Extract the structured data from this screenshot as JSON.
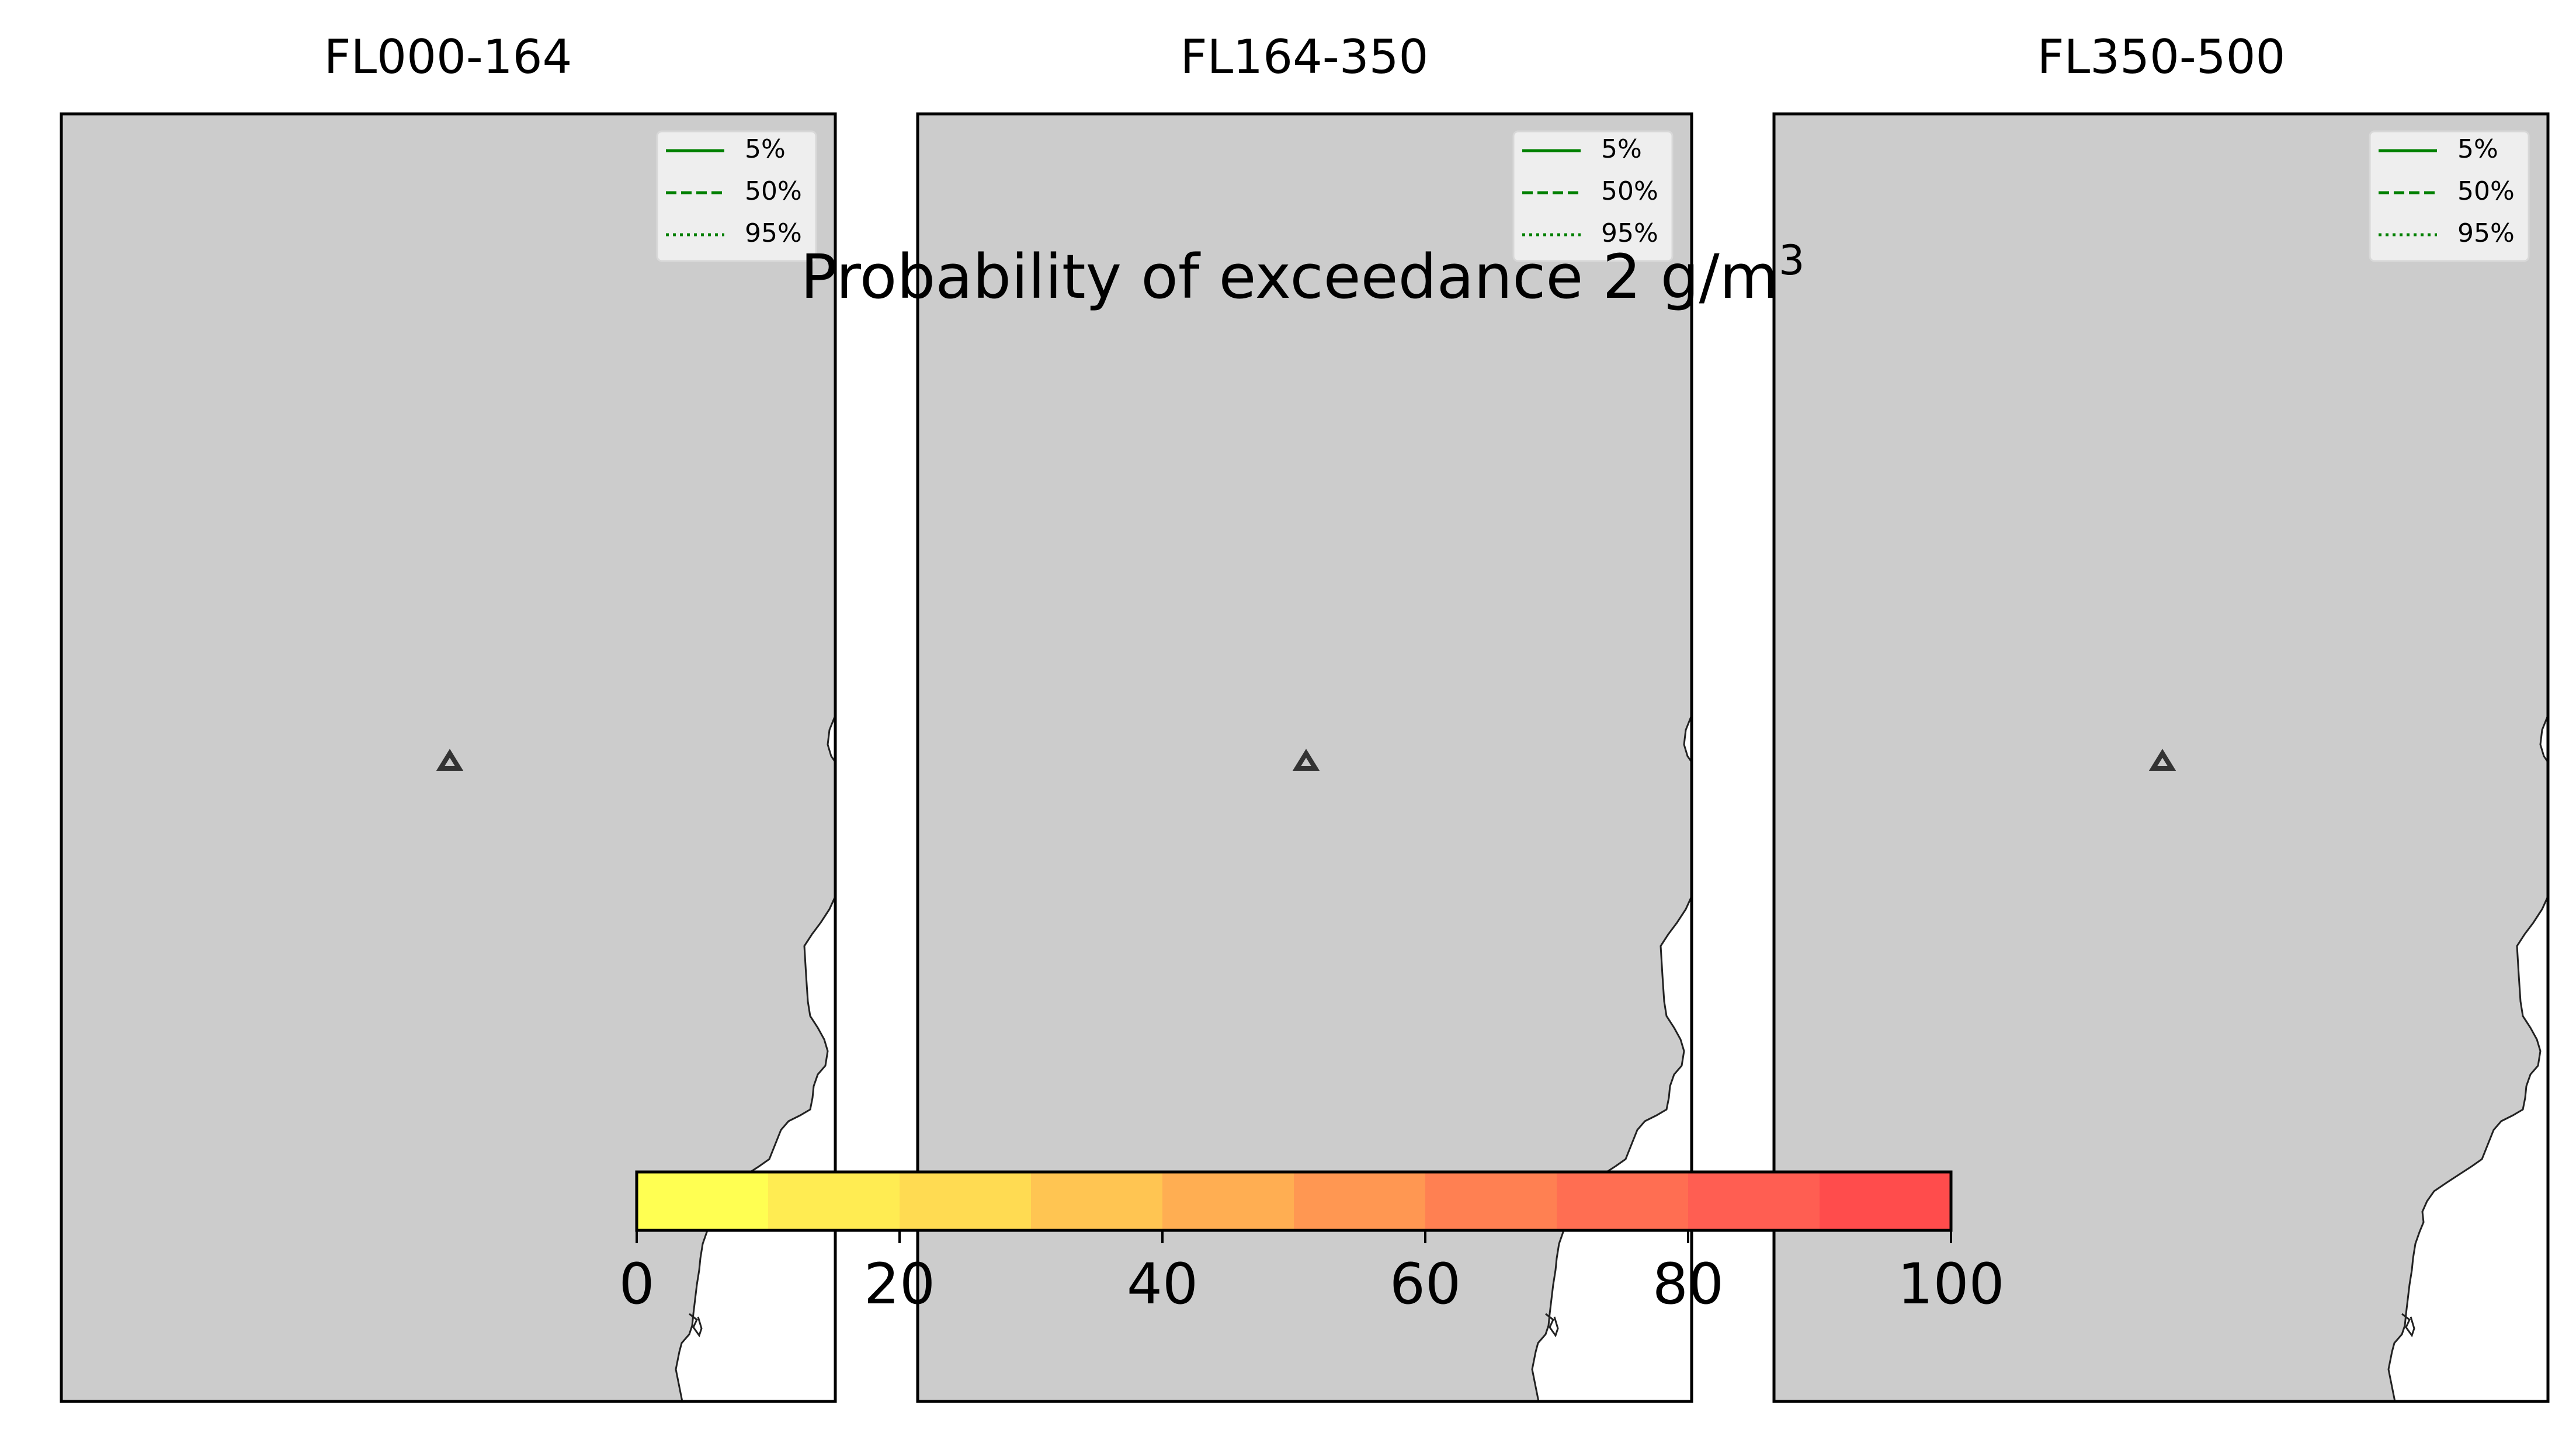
{
  "suptitle": {
    "text": "Probability of exceedance 2 g/m",
    "superscript": "3"
  },
  "panels": [
    {
      "title": "FL000-164",
      "legend": [
        "5%",
        "50%",
        "95%"
      ]
    },
    {
      "title": "FL164-350",
      "legend": [
        "5%",
        "50%",
        "95%"
      ]
    },
    {
      "title": "FL350-500",
      "legend": [
        "5%",
        "50%",
        "95%"
      ]
    }
  ],
  "colors": {
    "land": "#cccccc",
    "sea": "#ffffff",
    "coast": "#222222",
    "contour": "#008000",
    "volcano_marker": "#333333"
  },
  "colorbar": {
    "ticks": [
      "0",
      "20",
      "40",
      "60",
      "80",
      "100"
    ],
    "min": 0,
    "max": 100,
    "colors": [
      "#ffff52",
      "#ffec52",
      "#ffdb52",
      "#ffc552",
      "#ffae52",
      "#ff9752",
      "#ff8052",
      "#ff6e52",
      "#ff5e52",
      "#ff4c4c"
    ]
  },
  "volcano": {
    "marker": "triangle-icon"
  }
}
